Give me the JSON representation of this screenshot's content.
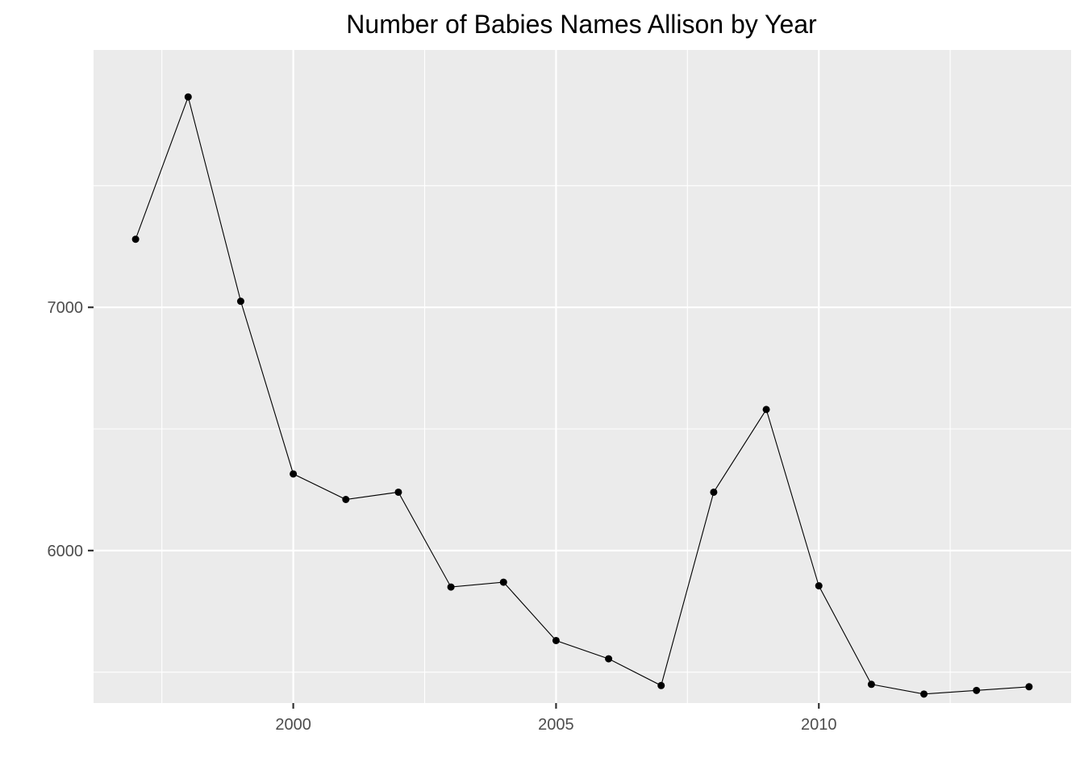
{
  "chart_data": {
    "type": "line",
    "title": "Number of Babies Names Allison by Year",
    "xlabel": "",
    "ylabel": "",
    "x": [
      1997,
      1998,
      1999,
      2000,
      2001,
      2002,
      2003,
      2004,
      2005,
      2006,
      2007,
      2008,
      2009,
      2010,
      2011,
      2012,
      2013,
      2014
    ],
    "series": [
      {
        "values": [
          7280,
          7865,
          7025,
          6315,
          6210,
          6240,
          5850,
          5870,
          5630,
          5555,
          5445,
          6240,
          6580,
          5855,
          5450,
          5410,
          5425,
          5440
        ]
      }
    ],
    "xlim": [
      1996.2,
      2014.8
    ],
    "ylim": [
      5373,
      8058
    ],
    "x_ticks": [
      2000,
      2005,
      2010
    ],
    "x_minor_ticks": [
      1997.5,
      2002.5,
      2007.5,
      2012.5
    ],
    "y_ticks": [
      6000,
      7000
    ],
    "y_minor_ticks": [
      5500,
      6500,
      7500
    ],
    "x_tick_labels": [
      "2000",
      "2005",
      "2010"
    ],
    "y_tick_labels": [
      "6000",
      "7000"
    ],
    "grid": true,
    "legend": "none",
    "colors": {
      "panel_background": "#ebebeb",
      "grid": "#ffffff",
      "line": "#000000",
      "point": "#000000",
      "tick_label": "#4d4d4d",
      "tick_mark": "#333333"
    }
  }
}
